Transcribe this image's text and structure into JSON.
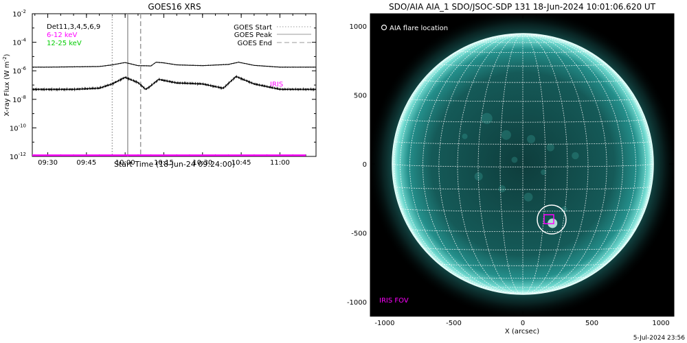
{
  "goes_panel": {
    "title": "GOES16 XRS",
    "ylabel_main": "X-ray Flux (W m",
    "ylabel_sup": "-2",
    "ylabel_close": ")",
    "xlabel": "Start Time (18-Jun-24 09:24:00)",
    "ytick_base": "10",
    "ytick_exponents": [
      "-2",
      "-4",
      "-6",
      "-8",
      "-10",
      "-12"
    ],
    "xticks": [
      "09:30",
      "09:45",
      "10:00",
      "10:15",
      "10:30",
      "10:45",
      "11:00"
    ],
    "det_label": "Det11,3,4,5,6,9",
    "band_low": "6-12 keV",
    "band_high": "12-25 keV",
    "legend_start": "GOES Start",
    "legend_peak": "GOES Peak",
    "legend_end": "GOES End",
    "iris_label": "IRIS",
    "colors": {
      "band_low": "#ff00ff",
      "band_high": "#00ff00",
      "iris": "#ff00ff"
    }
  },
  "aia_panel": {
    "title": "SDO/AIA AIA_1 SDO/JSOC-SDP 131 18-Jun-2024 10:01:06.620 UT",
    "legend_flare": "AIA flare location",
    "iris_fov": "IRIS FOV",
    "xlabel": "X (arcsec)",
    "xticks": [
      "-1000",
      "-500",
      "0",
      "500",
      "1000"
    ],
    "yticks": [
      "1000",
      "500",
      "0",
      "-500",
      "-1000"
    ],
    "colors": {
      "disk": "#1f8c8a",
      "limb": "#e8fffb",
      "iris_box": "#ff00ff"
    }
  },
  "footer": {
    "date": "5-Jul-2024 23:56"
  },
  "chart_data": [
    {
      "type": "line",
      "title": "GOES16 XRS",
      "xlabel": "Start Time (18-Jun-24 09:24:00)",
      "ylabel": "X-ray Flux (W m-2)",
      "yscale": "log",
      "ylim": [
        1e-12,
        0.01
      ],
      "xlim_minutes_after_0924": [
        0,
        110
      ],
      "x_tick_labels": [
        "09:30",
        "09:45",
        "10:00",
        "10:15",
        "10:30",
        "10:45",
        "11:00"
      ],
      "series": [
        {
          "name": "12-25 keV",
          "color": "#000000",
          "x": [
            "09:24",
            "09:30",
            "09:40",
            "09:50",
            "09:55",
            "10:00",
            "10:05",
            "10:10",
            "10:12",
            "10:15",
            "10:20",
            "10:30",
            "10:40",
            "10:44",
            "10:50",
            "11:00",
            "11:10"
          ],
          "y": [
            1.8e-06,
            1.8e-06,
            1.9e-06,
            2e-06,
            2.6e-06,
            3.8e-06,
            2.3e-06,
            2.2e-06,
            4e-06,
            3.6e-06,
            2.6e-06,
            2.3e-06,
            2.8e-06,
            4e-06,
            2.4e-06,
            1.8e-06,
            1.8e-06
          ]
        },
        {
          "name": "6-12 keV",
          "color": "#000000",
          "x": [
            "09:24",
            "09:30",
            "09:40",
            "09:50",
            "09:55",
            "10:00",
            "10:05",
            "10:08",
            "10:10",
            "10:13",
            "10:20",
            "10:30",
            "10:38",
            "10:43",
            "10:50",
            "11:00",
            "11:10"
          ],
          "y": [
            5e-08,
            5e-08,
            5e-08,
            6e-08,
            1.2e-07,
            3.5e-07,
            1.5e-07,
            5e-08,
            9e-08,
            2.5e-07,
            1.4e-07,
            1.2e-07,
            6e-08,
            4e-07,
            1.2e-07,
            5e-08,
            5e-08
          ]
        },
        {
          "name": "IRIS",
          "color": "#ff00ff",
          "x": [
            "09:24",
            "11:10"
          ],
          "y": [
            1.2e-12,
            1.2e-12
          ]
        }
      ],
      "vertical_markers": [
        {
          "name": "GOES Start",
          "time": "09:55",
          "style": "dotted"
        },
        {
          "name": "GOES Peak",
          "time": "10:01",
          "style": "solid"
        },
        {
          "name": "GOES End",
          "time": "10:06",
          "style": "dashed"
        }
      ]
    },
    {
      "type": "image",
      "title": "SDO/AIA AIA_1 SDO/JSOC-SDP 131 18-Jun-2024 10:01:06.620 UT",
      "xlabel": "X (arcsec)",
      "xlim": [
        -1100,
        1100
      ],
      "ylim": [
        -1100,
        1100
      ],
      "solar_radius_arcsec": 945,
      "flare_location_arcsec": [
        210,
        -410
      ],
      "iris_fov_center_arcsec": [
        195,
        -405
      ]
    }
  ]
}
